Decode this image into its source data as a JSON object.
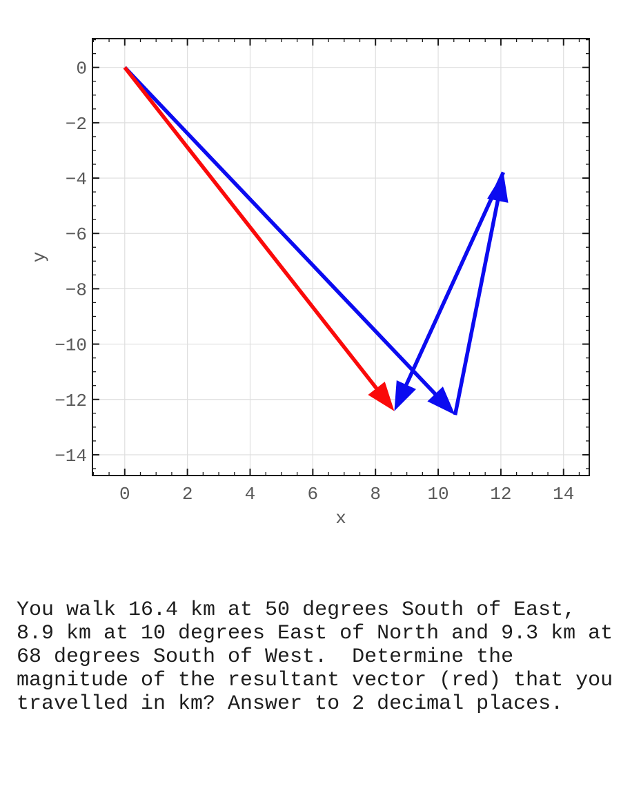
{
  "question": {
    "lines": [
      "You walk 16.4 km at 50 degrees South of East,",
      "8.9 km at 10 degrees East of North and 9.3 km at",
      "68 degrees South of West.  Determine the",
      "magnitude of the resultant vector (red) that you",
      "travelled in km? Answer to 2 decimal places."
    ]
  },
  "chart_data": {
    "type": "line",
    "subtype": "vector-quiver-plot",
    "title": "",
    "xlabel": "x",
    "ylabel": "y",
    "xlim": [
      -1.03,
      14.82
    ],
    "ylim": [
      -14.75,
      1.04
    ],
    "x_major_ticks": [
      0,
      2,
      4,
      6,
      8,
      10,
      12,
      14
    ],
    "y_major_ticks": [
      0,
      -2,
      -4,
      -6,
      -8,
      -10,
      -12,
      -14
    ],
    "minor_tick_step": 0.5,
    "grid": "major-only",
    "tick_direction": "in",
    "legend": "none",
    "colors": {
      "leg": "#0b0bf0",
      "resultant": "#fa0a0a",
      "grid": "#dedede",
      "spine": "#1a1a1a",
      "tick_label": "#595959"
    },
    "vectors": [
      {
        "name": "leg-1",
        "from": [
          0,
          0
        ],
        "to": [
          10.54,
          -12.56
        ],
        "color": "#0b0bf0"
      },
      {
        "name": "leg-2",
        "from": [
          10.54,
          -12.56
        ],
        "to": [
          12.08,
          -3.79
        ],
        "color": "#0b0bf0"
      },
      {
        "name": "leg-3",
        "from": [
          12.08,
          -3.79
        ],
        "to": [
          8.6,
          -12.42
        ],
        "color": "#0b0bf0"
      },
      {
        "name": "resultant",
        "from": [
          0,
          0
        ],
        "to": [
          8.6,
          -12.42
        ],
        "color": "#fa0a0a"
      }
    ]
  }
}
